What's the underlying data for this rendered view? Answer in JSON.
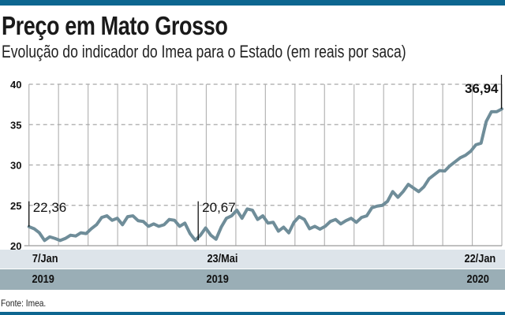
{
  "title": "Preço em Mato Grosso",
  "subtitle": "Evolução do indicador do Imea para o Estado (em reais por saca)",
  "source": "Fonte: Imea.",
  "colors": {
    "top_bar": "#0d6690",
    "line": "#6f8d99",
    "date_band": "#dde4ea",
    "year_band": "#9aaeb6"
  },
  "chart_data": {
    "type": "line",
    "title": "Preço em Mato Grosso",
    "ylabel": "",
    "ylim": [
      20,
      40
    ],
    "yticks": [
      "20",
      "25",
      "30",
      "35",
      "40"
    ],
    "grid": true,
    "x_start": "2019-01-07",
    "x_end": "2020-01-22",
    "x_tick_labels": [
      {
        "day": "7/Jan",
        "year": "2019"
      },
      {
        "day": "23/Mai",
        "year": "2019"
      },
      {
        "day": "22/Jan",
        "year": "2020"
      }
    ],
    "annotations": [
      {
        "label": "22,36",
        "value": 22.36,
        "date": "2019-01-07"
      },
      {
        "label": "20,67",
        "value": 20.67,
        "date": "2019-05-23"
      },
      {
        "label": "36,94",
        "value": 36.94,
        "date": "2020-01-22"
      }
    ],
    "values": [
      22.36,
      22.1,
      21.6,
      20.65,
      21.1,
      20.9,
      20.65,
      20.9,
      21.3,
      21.2,
      21.6,
      21.5,
      22.1,
      22.6,
      23.5,
      23.7,
      23.15,
      23.4,
      22.6,
      23.6,
      23.7,
      23.1,
      23.0,
      22.4,
      22.7,
      22.4,
      22.6,
      23.25,
      23.15,
      22.4,
      22.8,
      21.5,
      20.67,
      21.3,
      22.2,
      21.3,
      20.8,
      22.3,
      23.4,
      23.7,
      24.4,
      23.4,
      24.55,
      24.4,
      23.25,
      23.7,
      22.8,
      22.9,
      21.8,
      22.3,
      21.6,
      22.9,
      23.6,
      23.25,
      22.1,
      22.4,
      22.05,
      22.4,
      23.0,
      23.25,
      22.7,
      23.1,
      23.4,
      22.9,
      23.5,
      23.7,
      24.7,
      24.9,
      25.0,
      25.5,
      26.7,
      26.0,
      26.7,
      27.6,
      27.15,
      26.7,
      27.3,
      28.3,
      28.8,
      29.3,
      29.25,
      29.9,
      30.4,
      30.9,
      31.2,
      31.7,
      32.5,
      32.7,
      35.4,
      36.6,
      36.6,
      36.94
    ]
  }
}
